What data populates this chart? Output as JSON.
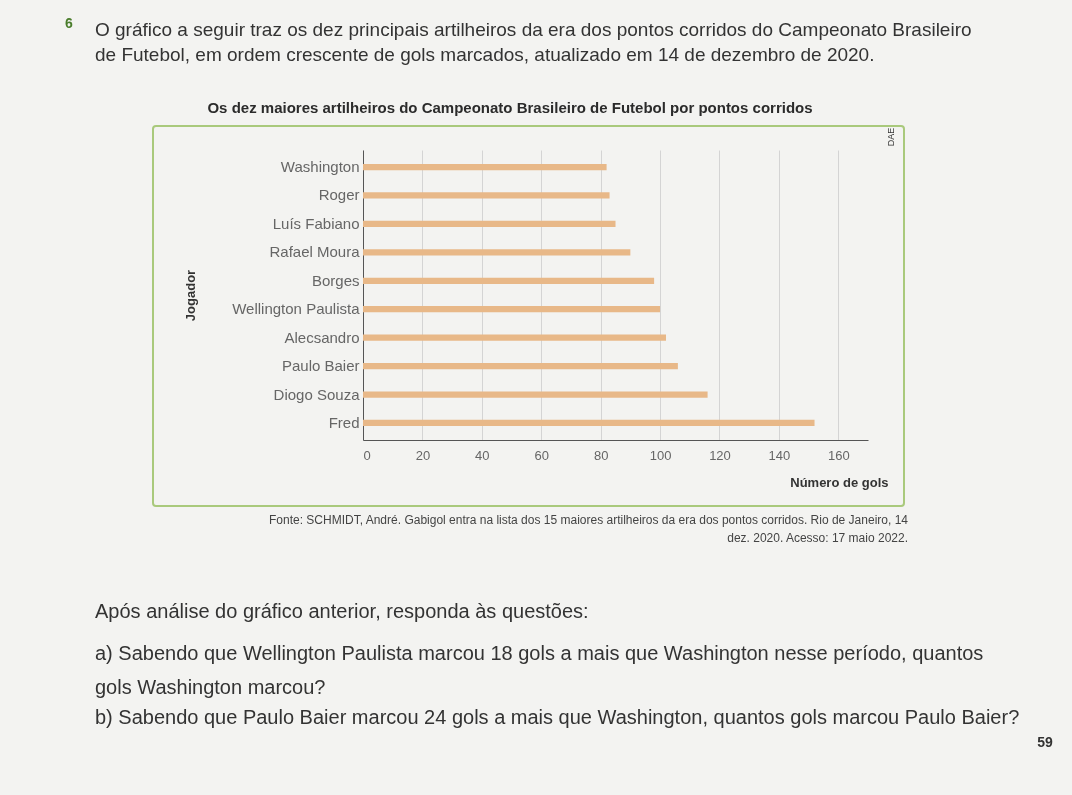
{
  "chart_data": {
    "type": "bar",
    "orientation": "horizontal",
    "title": "Os dez maiores artilheiros do Campeonato Brasileiro de Futebol por pontos corridos",
    "xlabel": "Número de gols",
    "ylabel": "Jogador",
    "categories": [
      "Washington",
      "Roger",
      "Luís Fabiano",
      "Rafael Moura",
      "Borges",
      "Wellington Paulista",
      "Alecsandro",
      "Paulo Baier",
      "Diogo Souza",
      "Fred"
    ],
    "values": [
      82,
      83,
      85,
      90,
      98,
      100,
      102,
      106,
      116,
      152
    ],
    "color": "#e8b888",
    "xlim": [
      0,
      170
    ],
    "xticks": [
      0,
      20,
      40,
      60,
      80,
      100,
      120,
      140,
      160
    ],
    "grid": "x",
    "annotations": [
      "6",
      "O gráfico a seguir traz os dez principais artilheiros da era dos pontos corridos do Campeonato Brasileiro de Futebol, em ordem crescente de gols marcados, atualizado em 14 de dezembro de 2020.",
      "DAE",
      "Fonte: SCHMIDT, André. Gabigol entra na lista dos 15 maiores artilheiros da era dos pontos corridos. Rio de Janeiro, 14 dez. 2020. Acesso: 17 maio 2022.",
      "Após análise do gráfico anterior, responda às questões:",
      "a) Sabendo que Wellington Paulista marcou 18 gols a mais que Washington nesse período, quantos gols Washington marcou?",
      "b) Sabendo que Paulo Baier marcou 24 gols a mais que Washington, quantos gols marcou Paulo Baier?",
      "59"
    ]
  }
}
